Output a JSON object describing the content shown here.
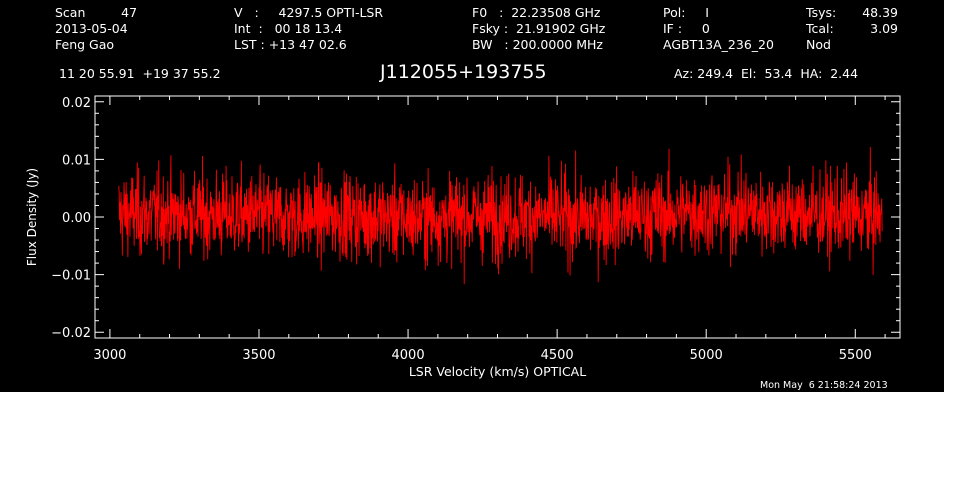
{
  "header": {
    "col1": [
      "Scan         47",
      "2013-05-04",
      "Feng Gao"
    ],
    "col2": [
      "V   :     4297.5 OPTI-LSR",
      "Int  :   00 18 13.4",
      "LST : +13 47 02.6"
    ],
    "col3": [
      "F0   :  22.23508 GHz",
      "Fsky :  21.91902 GHz",
      "BW   : 200.0000 MHz"
    ],
    "col4": [
      "Pol:     I",
      "IF :     0",
      "AGBT13A_236_20"
    ],
    "col5": [
      "Tsys:",
      "Tcal:",
      "Nod"
    ],
    "col5_values": [
      "48.39",
      "3.09",
      ""
    ],
    "coords": "11 20 55.91  +19 37 55.2",
    "source": "J112055+193755",
    "pointing": "Az: 249.4  El:  53.4  HA:  2.44",
    "timestamp": "Mon May  6 21:58:24 2013"
  },
  "colors": {
    "background": "#000000",
    "trace": "#ff0000",
    "axes": "#ffffff"
  },
  "chart_data": {
    "type": "line",
    "title": "J112055+193755",
    "xlabel": "LSR Velocity (km/s) OPTICAL",
    "ylabel": "Flux Density (Jy)",
    "xlim": [
      2950,
      5650
    ],
    "ylim": [
      -0.021,
      0.021
    ],
    "x_ticks": [
      3000,
      3500,
      4000,
      4500,
      5000,
      5500
    ],
    "x_tick_labels": [
      "3000",
      "3500",
      "4000",
      "4500",
      "5000",
      "5500"
    ],
    "y_ticks": [
      -0.02,
      -0.01,
      0.0,
      0.01,
      0.02
    ],
    "y_tick_labels": [
      "−0.02",
      "−0.01",
      "0.00",
      "0.01",
      "0.02"
    ],
    "x_range": [
      3030,
      5590
    ],
    "series": [
      {
        "values_summary": "noise around zero",
        "baseline_points": [
          [
            3030,
            0.0005
          ],
          [
            3200,
            0.0005
          ],
          [
            3400,
            0.0003
          ],
          [
            3600,
            0.0
          ],
          [
            3800,
            0.0002
          ],
          [
            4000,
            -0.0003
          ],
          [
            4200,
            0.0001
          ],
          [
            4400,
            0.0002
          ],
          [
            4600,
            -0.0002
          ],
          [
            4800,
            0.0003
          ],
          [
            5000,
            0.001
          ],
          [
            5200,
            0.001
          ],
          [
            5400,
            0.0004
          ],
          [
            5590,
            0.0002
          ]
        ],
        "noise_rms": 0.0037,
        "min": -0.016,
        "max": 0.0155
      }
    ]
  }
}
